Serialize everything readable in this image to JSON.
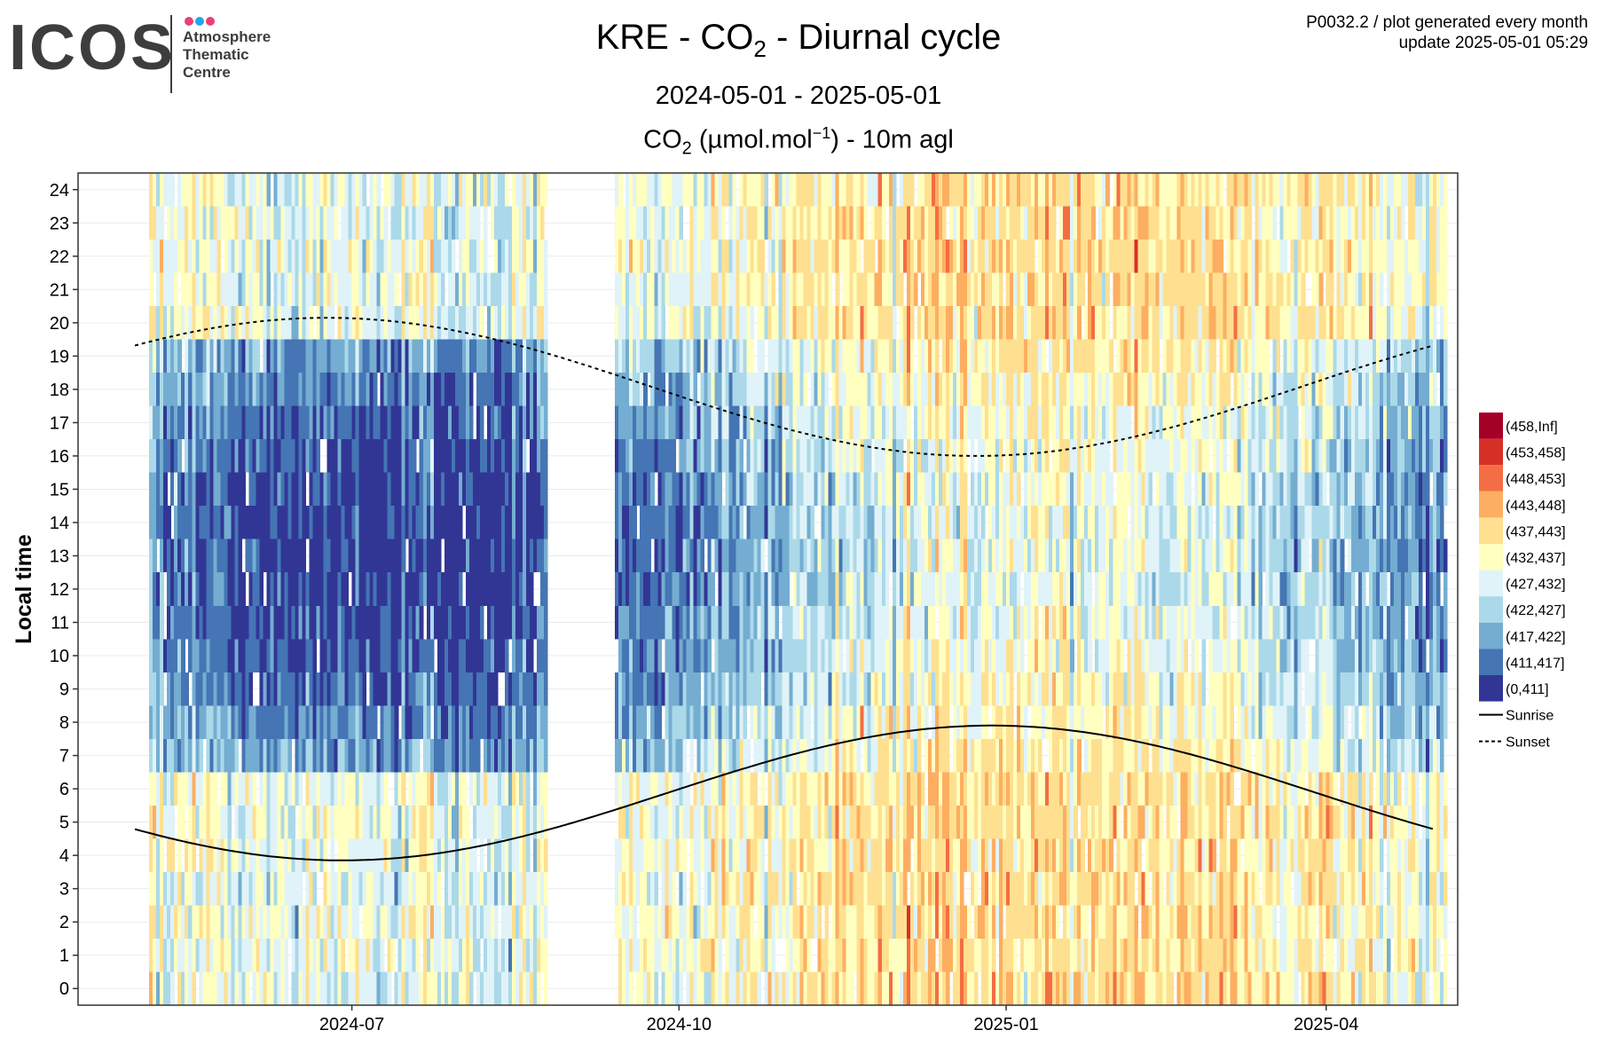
{
  "logo": {
    "word": "ICOS",
    "sub": [
      "Atmosphere",
      "Thematic",
      "Centre"
    ],
    "dot_colors": [
      "#e8417a",
      "#23a7e6",
      "#e8417a"
    ]
  },
  "header": {
    "title_pre": "KRE - CO",
    "title_sub": "2",
    "title_post": " - Diurnal cycle",
    "period": "2024-05-01 - 2025-05-01",
    "subtitle_pre": "CO",
    "subtitle_sub": "2",
    "subtitle_mid": " (µmol.mol",
    "subtitle_sup": "−1",
    "subtitle_post": ") - 10m agl"
  },
  "meta": {
    "line1": "P0032.2 / plot generated every month",
    "line2": "update  2025-05-01 05:29"
  },
  "chart_data": {
    "type": "heatmap",
    "x_start": "2024-05-01",
    "x_end": "2025-05-01",
    "data_gap": [
      "2024-08-25",
      "2024-09-13"
    ],
    "xlabel": "",
    "ylabel": "Local time",
    "ylim": [
      0,
      24
    ],
    "yticks": [
      0,
      1,
      2,
      3,
      4,
      5,
      6,
      7,
      8,
      9,
      10,
      11,
      12,
      13,
      14,
      15,
      16,
      17,
      18,
      19,
      20,
      21,
      22,
      23,
      24
    ],
    "xticks": [
      {
        "label": "2024-07",
        "date": "2024-07-01"
      },
      {
        "label": "2024-10",
        "date": "2024-10-01"
      },
      {
        "label": "2025-01",
        "date": "2025-01-01"
      },
      {
        "label": "2025-04",
        "date": "2025-04-01"
      }
    ],
    "legend": {
      "placement": "right",
      "bins": [
        {
          "label": "(458,Inf]",
          "color": "#a50026"
        },
        {
          "label": "(453,458]",
          "color": "#d73027"
        },
        {
          "label": "(448,453]",
          "color": "#f46d43"
        },
        {
          "label": "(443,448]",
          "color": "#fdae61"
        },
        {
          "label": "(437,443]",
          "color": "#fee090"
        },
        {
          "label": "(432,437]",
          "color": "#ffffbf"
        },
        {
          "label": "(427,432]",
          "color": "#e0f3f8"
        },
        {
          "label": "(422,427]",
          "color": "#abd9e9"
        },
        {
          "label": "(417,422]",
          "color": "#74add1"
        },
        {
          "label": "(411,417]",
          "color": "#4575b4"
        },
        {
          "label": "(0,411]",
          "color": "#313695"
        }
      ],
      "lines": [
        {
          "label": "Sunrise",
          "style": "solid"
        },
        {
          "label": "Sunset",
          "style": "dashed"
        }
      ]
    },
    "sunrise": {
      "peak": 7.9,
      "peak_date": "2024-12-28",
      "trough": 3.85,
      "trough_date": "2024-06-19"
    },
    "sunset": {
      "peak": 20.15,
      "peak_date": "2024-06-24",
      "trough": 16.0,
      "trough_date": "2024-12-12"
    },
    "grid": true
  }
}
